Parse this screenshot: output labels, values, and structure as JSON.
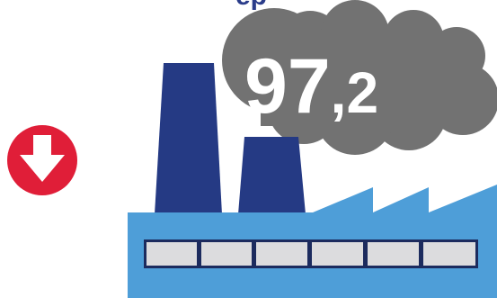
{
  "heading_fragment": "ep",
  "emission": {
    "integer_part": "97",
    "decimal_part": ",2"
  },
  "trend": {
    "direction": "down",
    "icon": "down-arrow-icon"
  },
  "colors": {
    "smoke": "#727272",
    "chimney": "#253a84",
    "factory": "#4e9ed8",
    "windows": "#dcdcde",
    "window_frame": "#1c2b5e",
    "trend_badge": "#e01e38",
    "heading": "#2a3c8a",
    "smoke_text": "#ffffff"
  }
}
